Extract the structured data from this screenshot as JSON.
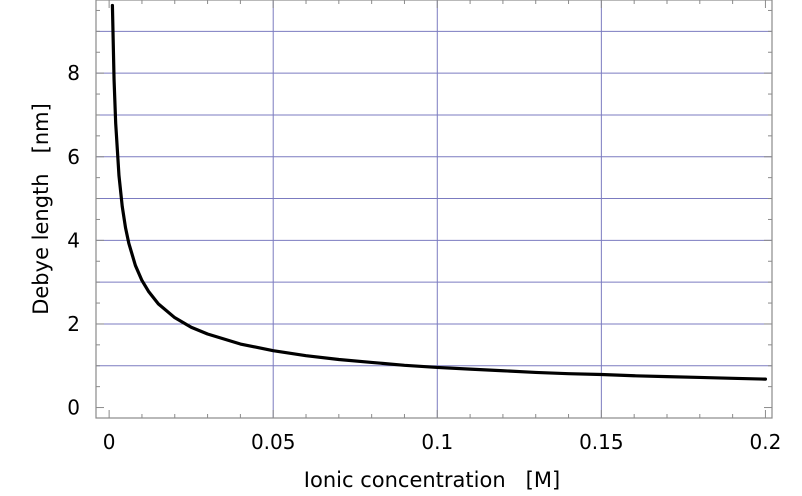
{
  "chart_data": {
    "type": "line",
    "title": "",
    "xlabel": "Ionic concentration   [M]",
    "ylabel": "Debye length   [nm]",
    "xlim": [
      -0.004,
      0.202
    ],
    "ylim": [
      -0.25,
      9.75
    ],
    "xticks": [
      0,
      0.05,
      0.1,
      0.15,
      0.2
    ],
    "xtick_labels": [
      "0",
      "0.05",
      "0.1",
      "0.15",
      "0.2"
    ],
    "yticks": [
      0,
      2,
      4,
      6,
      8
    ],
    "ytick_labels": [
      "0",
      "2",
      "4",
      "6",
      "8"
    ],
    "x_gridlines": [
      0.05,
      0.1,
      0.15
    ],
    "y_gridlines": [
      1,
      2,
      3,
      4,
      5,
      6,
      7,
      8,
      9
    ],
    "grid": true,
    "grid_color": "#7b7bc0",
    "line_color": "#000000",
    "series": [
      {
        "x": [
          0.001,
          0.0015,
          0.002,
          0.003,
          0.004,
          0.005,
          0.006,
          0.008,
          0.01,
          0.012,
          0.015,
          0.02,
          0.025,
          0.03,
          0.04,
          0.05,
          0.06,
          0.07,
          0.08,
          0.09,
          0.1,
          0.11,
          0.12,
          0.13,
          0.14,
          0.15,
          0.16,
          0.17,
          0.18,
          0.19,
          0.2
        ],
        "y": [
          9.62,
          7.85,
          6.8,
          5.55,
          4.81,
          4.3,
          3.93,
          3.4,
          3.04,
          2.78,
          2.48,
          2.15,
          1.92,
          1.76,
          1.52,
          1.36,
          1.24,
          1.15,
          1.08,
          1.01,
          0.96,
          0.92,
          0.88,
          0.84,
          0.81,
          0.79,
          0.76,
          0.74,
          0.72,
          0.7,
          0.68
        ]
      }
    ]
  }
}
